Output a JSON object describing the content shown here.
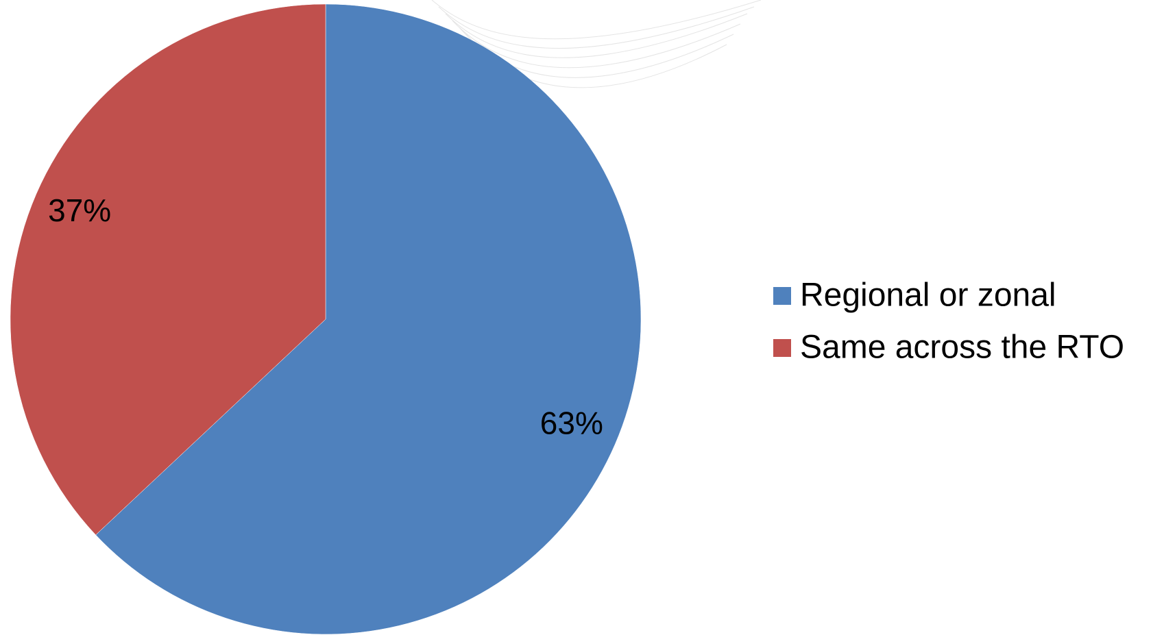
{
  "chart_data": {
    "type": "pie",
    "categories": [
      "Regional or zonal",
      "Same across the RTO"
    ],
    "values": [
      63,
      37
    ],
    "value_labels": [
      "63%",
      "37%"
    ],
    "colors": [
      "#4f81bd",
      "#c0504d"
    ],
    "legend": "right"
  }
}
